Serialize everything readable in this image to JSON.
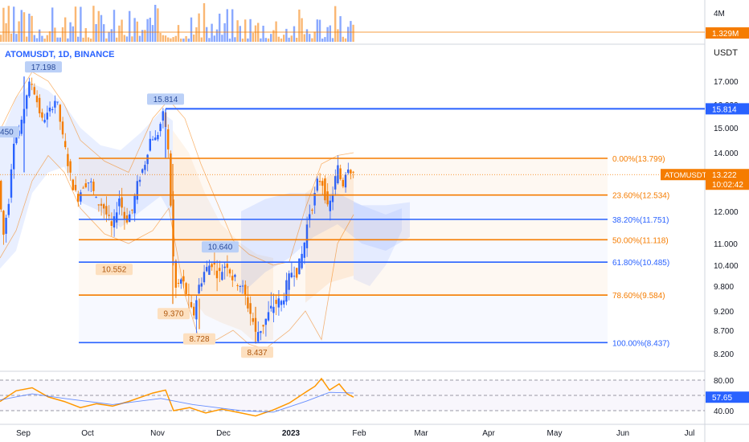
{
  "header": {
    "symbol_title": "ATOMUSDT, 1D, BINANCE",
    "unit": "USDT"
  },
  "volume_panel": {
    "axis_label": "4M",
    "current_badge": "1.329M"
  },
  "price_axis": {
    "ticks": [
      "17.000",
      "16.000",
      "15.000",
      "14.000",
      "13.000",
      "12.000",
      "11.000",
      "10.400",
      "9.800",
      "9.200",
      "8.700",
      "8.200"
    ]
  },
  "current_price": {
    "symbol": "ATOMUSDT",
    "price": "13.222",
    "countdown": "10:02:42"
  },
  "level_badge": "15.814",
  "fib_levels": [
    {
      "label": "0.00%(13.799)",
      "color": "#f57c00"
    },
    {
      "label": "23.60%(12.534)",
      "color": "#f57c00"
    },
    {
      "label": "38.20%(11.751)",
      "color": "#2962ff"
    },
    {
      "label": "50.00%(11.118)",
      "color": "#f57c00"
    },
    {
      "label": "61.80%(10.485)",
      "color": "#2962ff"
    },
    {
      "label": "78.60%(9.584)",
      "color": "#f57c00"
    },
    {
      "label": "100.00%(8.437)",
      "color": "#2962ff"
    }
  ],
  "price_callouts": [
    {
      "text": "17.198",
      "kind": "high"
    },
    {
      "text": "15.814",
      "kind": "high"
    },
    {
      "text": "10.640",
      "kind": "high"
    },
    {
      "text": ".450",
      "kind": "high"
    },
    {
      "text": "10.552",
      "kind": "low"
    },
    {
      "text": "9.370",
      "kind": "low"
    },
    {
      "text": "8.728",
      "kind": "low"
    },
    {
      "text": "8.437",
      "kind": "low"
    }
  ],
  "rsi_panel": {
    "ticks": [
      "80.00",
      "40.00"
    ],
    "current_badge": "57.65"
  },
  "time_axis": [
    "Sep",
    "Oct",
    "Nov",
    "Dec",
    "2023",
    "Feb",
    "Mar",
    "Apr",
    "May",
    "Jun",
    "Jul"
  ],
  "chart_data": {
    "type": "line",
    "title": "ATOMUSDT, 1D, BINANCE",
    "ylabel": "USDT",
    "ylim": [
      8.0,
      17.5
    ],
    "x": [
      "Sep",
      "Oct",
      "Nov",
      "Dec",
      "2023",
      "Feb"
    ],
    "series": [
      {
        "name": "ATOMUSDT",
        "values": [
          14.45,
          12.5,
          15.81,
          8.73,
          8.44,
          13.22
        ]
      }
    ],
    "annotations": [
      "17.198",
      "15.814",
      "10.640",
      "10.552",
      "9.370",
      "8.728",
      "8.437"
    ],
    "fib_retracement": [
      "0.00%(13.799)",
      "23.60%(12.534)",
      "38.20%(11.751)",
      "50.00%(11.118)",
      "61.80%(10.485)",
      "78.60%(9.584)",
      "100.00%(8.437)"
    ],
    "rsi_last": 57.65,
    "volume_last": "1.329M",
    "grid": false
  }
}
